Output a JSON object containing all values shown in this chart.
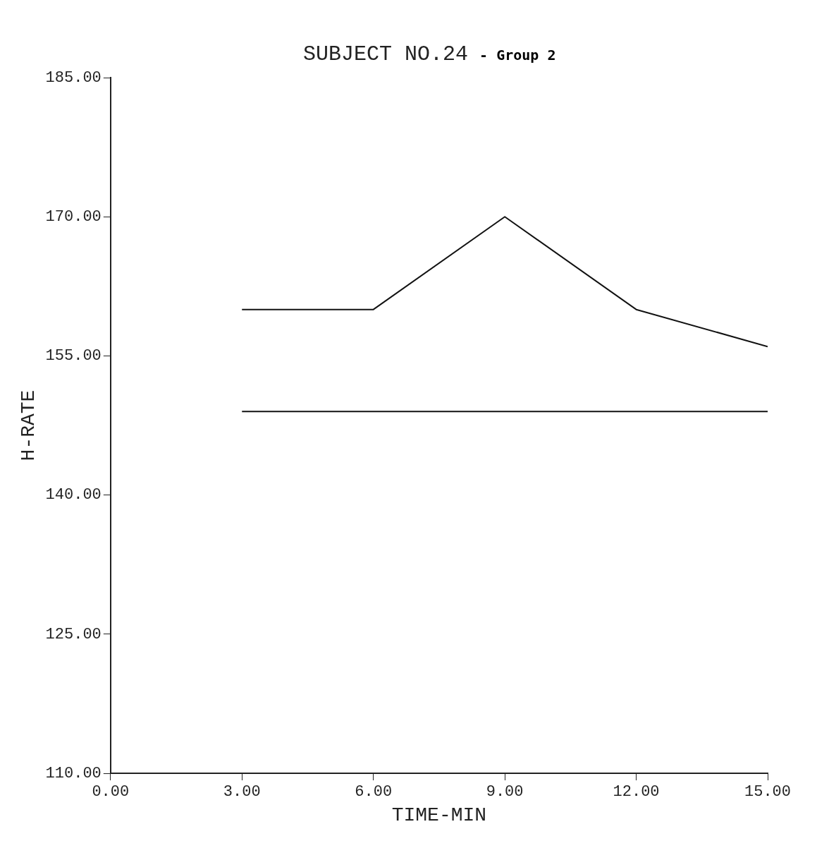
{
  "chart_data": {
    "type": "line",
    "title": "SUBJECT NO.24",
    "subtitle": "- Group 2",
    "xlabel": "TIME-MIN",
    "ylabel": "H-RATE",
    "series": [
      {
        "color": "#111111",
        "x": [
          3,
          6,
          9,
          12,
          15
        ],
        "values": [
          160,
          160,
          170,
          160,
          156
        ]
      },
      {
        "color": "#111111",
        "x": [
          3,
          15
        ],
        "values": [
          149,
          149
        ]
      }
    ],
    "xlim": [
      0,
      15
    ],
    "xticks": [
      {
        "value": 0,
        "label": "0.00"
      },
      {
        "value": 3,
        "label": "3.00"
      },
      {
        "value": 6,
        "label": "6.00"
      },
      {
        "value": 9,
        "label": "9.00"
      },
      {
        "value": 12,
        "label": "12.00"
      },
      {
        "value": 15,
        "label": "15.00"
      }
    ],
    "ylim": [
      110,
      185
    ],
    "yticks": [
      {
        "value": 110,
        "label": "110.00"
      },
      {
        "value": 125,
        "label": "125.00"
      },
      {
        "value": 140,
        "label": "140.00"
      },
      {
        "value": 155,
        "label": "155.00"
      },
      {
        "value": 170,
        "label": "170.00"
      },
      {
        "value": 185,
        "label": "185.00"
      }
    ],
    "grid": false,
    "legend": false,
    "marker": "none",
    "line_style": "solid"
  }
}
